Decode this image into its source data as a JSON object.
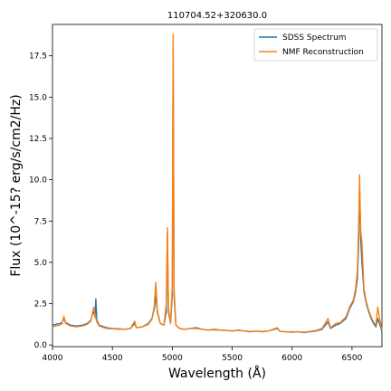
{
  "chart_data": {
    "type": "line",
    "title": "110704.52+320630.0",
    "xlabel": "Wavelength (Å)",
    "ylabel": "Flux (10^-15? erg/s/cm2/Hz)",
    "xlim": [
      4000,
      6750
    ],
    "ylim": [
      -0.1,
      19.4
    ],
    "xticks": [
      4000,
      4500,
      5000,
      5500,
      6000,
      6500
    ],
    "xtick_labels": [
      "4000",
      "4500",
      "5000",
      "5500",
      "6000",
      "6500"
    ],
    "yticks": [
      0.0,
      2.5,
      5.0,
      7.5,
      10.0,
      12.5,
      15.0,
      17.5
    ],
    "ytick_labels": [
      "0.0",
      "2.5",
      "5.0",
      "7.5",
      "10.0",
      "12.5",
      "15.0",
      "17.5"
    ],
    "grid": false,
    "legend_position": "top-right",
    "series": [
      {
        "name": "SDSS Spectrum",
        "color": "#1f77b4",
        "points": [
          [
            4000,
            1.2
          ],
          [
            4030,
            1.25
          ],
          [
            4060,
            1.3
          ],
          [
            4080,
            1.35
          ],
          [
            4095,
            1.6
          ],
          [
            4110,
            1.35
          ],
          [
            4150,
            1.2
          ],
          [
            4200,
            1.15
          ],
          [
            4250,
            1.2
          ],
          [
            4290,
            1.3
          ],
          [
            4320,
            1.5
          ],
          [
            4335,
            1.9
          ],
          [
            4345,
            2.0
          ],
          [
            4355,
            1.7
          ],
          [
            4362,
            2.8
          ],
          [
            4370,
            1.5
          ],
          [
            4390,
            1.2
          ],
          [
            4450,
            1.05
          ],
          [
            4500,
            1.0
          ],
          [
            4550,
            0.98
          ],
          [
            4600,
            0.95
          ],
          [
            4650,
            1.0
          ],
          [
            4686,
            1.3
          ],
          [
            4700,
            1.05
          ],
          [
            4750,
            1.1
          ],
          [
            4800,
            1.3
          ],
          [
            4830,
            1.6
          ],
          [
            4850,
            2.2
          ],
          [
            4862,
            3.0
          ],
          [
            4875,
            2.0
          ],
          [
            4900,
            1.3
          ],
          [
            4930,
            1.2
          ],
          [
            4950,
            2.0
          ],
          [
            4959,
            6.8
          ],
          [
            4968,
            2.0
          ],
          [
            4985,
            1.3
          ],
          [
            5000,
            3.0
          ],
          [
            5007,
            18.0
          ],
          [
            5015,
            3.0
          ],
          [
            5030,
            1.2
          ],
          [
            5060,
            1.0
          ],
          [
            5100,
            0.95
          ],
          [
            5150,
            1.0
          ],
          [
            5200,
            1.05
          ],
          [
            5250,
            0.95
          ],
          [
            5300,
            0.9
          ],
          [
            5350,
            0.95
          ],
          [
            5400,
            0.9
          ],
          [
            5450,
            0.88
          ],
          [
            5500,
            0.85
          ],
          [
            5550,
            0.9
          ],
          [
            5600,
            0.85
          ],
          [
            5650,
            0.8
          ],
          [
            5700,
            0.85
          ],
          [
            5750,
            0.8
          ],
          [
            5800,
            0.85
          ],
          [
            5876,
            1.0
          ],
          [
            5900,
            0.82
          ],
          [
            5950,
            0.8
          ],
          [
            6000,
            0.78
          ],
          [
            6050,
            0.8
          ],
          [
            6100,
            0.75
          ],
          [
            6150,
            0.8
          ],
          [
            6200,
            0.85
          ],
          [
            6250,
            0.95
          ],
          [
            6300,
            1.4
          ],
          [
            6320,
            1.0
          ],
          [
            6364,
            1.2
          ],
          [
            6400,
            1.3
          ],
          [
            6450,
            1.6
          ],
          [
            6480,
            2.2
          ],
          [
            6510,
            2.6
          ],
          [
            6530,
            3.2
          ],
          [
            6545,
            4.0
          ],
          [
            6555,
            6.0
          ],
          [
            6563,
            9.6
          ],
          [
            6572,
            6.5
          ],
          [
            6583,
            5.0
          ],
          [
            6600,
            3.2
          ],
          [
            6620,
            2.5
          ],
          [
            6640,
            2.0
          ],
          [
            6660,
            1.6
          ],
          [
            6680,
            1.3
          ],
          [
            6700,
            1.1
          ],
          [
            6715,
            1.6
          ],
          [
            6730,
            1.3
          ],
          [
            6750,
            0.8
          ]
        ]
      },
      {
        "name": "NMF Reconstruction",
        "color": "#ff7f0e",
        "points": [
          [
            4000,
            1.1
          ],
          [
            4030,
            1.15
          ],
          [
            4060,
            1.2
          ],
          [
            4080,
            1.3
          ],
          [
            4095,
            1.75
          ],
          [
            4110,
            1.3
          ],
          [
            4150,
            1.15
          ],
          [
            4200,
            1.1
          ],
          [
            4250,
            1.15
          ],
          [
            4290,
            1.25
          ],
          [
            4320,
            1.45
          ],
          [
            4335,
            2.0
          ],
          [
            4345,
            2.3
          ],
          [
            4355,
            1.8
          ],
          [
            4362,
            1.6
          ],
          [
            4370,
            1.4
          ],
          [
            4390,
            1.15
          ],
          [
            4450,
            1.0
          ],
          [
            4500,
            0.98
          ],
          [
            4550,
            0.95
          ],
          [
            4600,
            0.95
          ],
          [
            4650,
            1.0
          ],
          [
            4686,
            1.45
          ],
          [
            4700,
            1.05
          ],
          [
            4750,
            1.1
          ],
          [
            4800,
            1.25
          ],
          [
            4830,
            1.55
          ],
          [
            4850,
            2.4
          ],
          [
            4862,
            3.8
          ],
          [
            4875,
            2.1
          ],
          [
            4900,
            1.3
          ],
          [
            4930,
            1.2
          ],
          [
            4950,
            2.5
          ],
          [
            4959,
            7.1
          ],
          [
            4968,
            2.2
          ],
          [
            4985,
            1.3
          ],
          [
            5000,
            3.5
          ],
          [
            5007,
            18.8
          ],
          [
            5015,
            3.4
          ],
          [
            5030,
            1.2
          ],
          [
            5060,
            1.0
          ],
          [
            5100,
            0.95
          ],
          [
            5150,
            1.0
          ],
          [
            5200,
            1.0
          ],
          [
            5250,
            0.95
          ],
          [
            5300,
            0.9
          ],
          [
            5350,
            0.92
          ],
          [
            5400,
            0.9
          ],
          [
            5450,
            0.88
          ],
          [
            5500,
            0.86
          ],
          [
            5550,
            0.88
          ],
          [
            5600,
            0.85
          ],
          [
            5650,
            0.82
          ],
          [
            5700,
            0.84
          ],
          [
            5750,
            0.82
          ],
          [
            5800,
            0.84
          ],
          [
            5876,
            1.05
          ],
          [
            5900,
            0.82
          ],
          [
            5950,
            0.8
          ],
          [
            6000,
            0.8
          ],
          [
            6050,
            0.8
          ],
          [
            6100,
            0.78
          ],
          [
            6150,
            0.82
          ],
          [
            6200,
            0.88
          ],
          [
            6250,
            1.0
          ],
          [
            6300,
            1.6
          ],
          [
            6320,
            1.05
          ],
          [
            6364,
            1.3
          ],
          [
            6400,
            1.35
          ],
          [
            6450,
            1.7
          ],
          [
            6480,
            2.3
          ],
          [
            6510,
            2.7
          ],
          [
            6530,
            3.4
          ],
          [
            6545,
            4.5
          ],
          [
            6555,
            7.0
          ],
          [
            6563,
            10.3
          ],
          [
            6572,
            7.0
          ],
          [
            6583,
            6.2
          ],
          [
            6600,
            3.4
          ],
          [
            6620,
            2.6
          ],
          [
            6640,
            2.1
          ],
          [
            6660,
            1.7
          ],
          [
            6680,
            1.4
          ],
          [
            6700,
            1.2
          ],
          [
            6715,
            2.3
          ],
          [
            6730,
            1.6
          ],
          [
            6750,
            0.9
          ]
        ]
      }
    ]
  }
}
